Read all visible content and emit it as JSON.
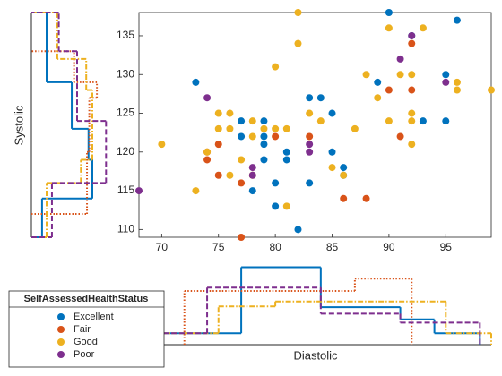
{
  "chart_data": {
    "type": "scatterhistogram",
    "xlabel": "Diastolic",
    "ylabel": "Systolic",
    "legend_title": "SelfAssessedHealthStatus",
    "xlim": [
      68,
      99
    ],
    "ylim": [
      109,
      138
    ],
    "xticks": [
      70,
      75,
      80,
      85,
      90,
      95
    ],
    "yticks": [
      110,
      115,
      120,
      125,
      130,
      135
    ],
    "series": [
      {
        "name": "Excellent",
        "color": "#0072BD",
        "linestyle": "solid",
        "x": [
          73,
          77,
          77,
          79,
          79,
          79,
          79,
          78,
          80,
          80,
          81,
          81,
          82,
          83,
          84,
          83,
          85,
          85,
          86,
          86,
          89,
          90,
          92,
          93,
          95,
          95,
          96
        ],
        "values": [
          129,
          124,
          122,
          124,
          122,
          121,
          119,
          115,
          116,
          113,
          120,
          119,
          110,
          127,
          127,
          116,
          125,
          120,
          118,
          117,
          129,
          138,
          135,
          124,
          130,
          124,
          137
        ]
      },
      {
        "name": "Fair",
        "color": "#D95319",
        "linestyle": "dotted",
        "x": [
          75,
          75,
          74,
          74,
          77,
          77,
          80,
          83,
          86,
          88,
          90,
          91,
          92,
          92
        ],
        "values": [
          121,
          117,
          120,
          119,
          116,
          109,
          122,
          122,
          114,
          114,
          128,
          122,
          128,
          134
        ]
      },
      {
        "name": "Good",
        "color": "#EDB120",
        "linestyle": "dashdot",
        "x": [
          70,
          73,
          74,
          75,
          75,
          76,
          76,
          76,
          77,
          78,
          78,
          78,
          79,
          80,
          80,
          81,
          81,
          82,
          82,
          83,
          84,
          85,
          86,
          87,
          88,
          90,
          90,
          91,
          92,
          92,
          92,
          92,
          93,
          96,
          96,
          99,
          89
        ],
        "values": [
          121,
          115,
          120,
          125,
          123,
          125,
          123,
          117,
          119,
          124,
          122,
          117,
          123,
          123,
          131,
          123,
          113,
          138,
          134,
          125,
          124,
          118,
          117,
          123,
          130,
          136,
          124,
          130,
          125,
          124,
          121,
          130,
          136,
          129,
          128,
          128,
          127
        ]
      },
      {
        "name": "Poor",
        "color": "#7E2F8E",
        "linestyle": "dashed",
        "x": [
          74,
          78,
          78,
          83,
          83,
          91,
          92,
          95,
          68
        ],
        "values": [
          127,
          118,
          117,
          121,
          120,
          132,
          135,
          129,
          115
        ]
      }
    ],
    "x_histogram": {
      "vlim": [
        0,
        1
      ],
      "series": [
        {
          "edges": [
            70,
            77,
            84,
            91,
            94,
            98
          ],
          "values": [
            0.14,
            0.95,
            0.46,
            0.31,
            0.14
          ]
        },
        {
          "edges": [
            72,
            87,
            92
          ],
          "values": [
            0.66,
            0.81
          ]
        },
        {
          "edges": [
            70,
            75,
            80,
            95,
            99
          ],
          "values": [
            0.14,
            0.47,
            0.53,
            0.14
          ]
        },
        {
          "edges": [
            68,
            74,
            84,
            91,
            98
          ],
          "values": [
            0.14,
            0.7,
            0.38,
            0.27
          ]
        }
      ]
    },
    "y_histogram": {
      "vlim": [
        0,
        1
      ],
      "series": [
        {
          "edges": [
            109,
            114,
            119,
            123,
            129,
            138
          ],
          "values": [
            0.14,
            0.8,
            0.75,
            0.53,
            0.2
          ]
        },
        {
          "edges": [
            112,
            120,
            127,
            129,
            133
          ],
          "values": [
            0.73,
            0.76,
            0.86,
            0.56
          ]
        },
        {
          "edges": [
            109,
            116,
            119,
            128,
            132,
            138
          ],
          "values": [
            0.2,
            0.65,
            0.8,
            0.72,
            0.34
          ]
        },
        {
          "edges": [
            109,
            116,
            124,
            133,
            138
          ],
          "values": [
            0.27,
            0.98,
            0.6,
            0.36
          ]
        }
      ]
    }
  }
}
